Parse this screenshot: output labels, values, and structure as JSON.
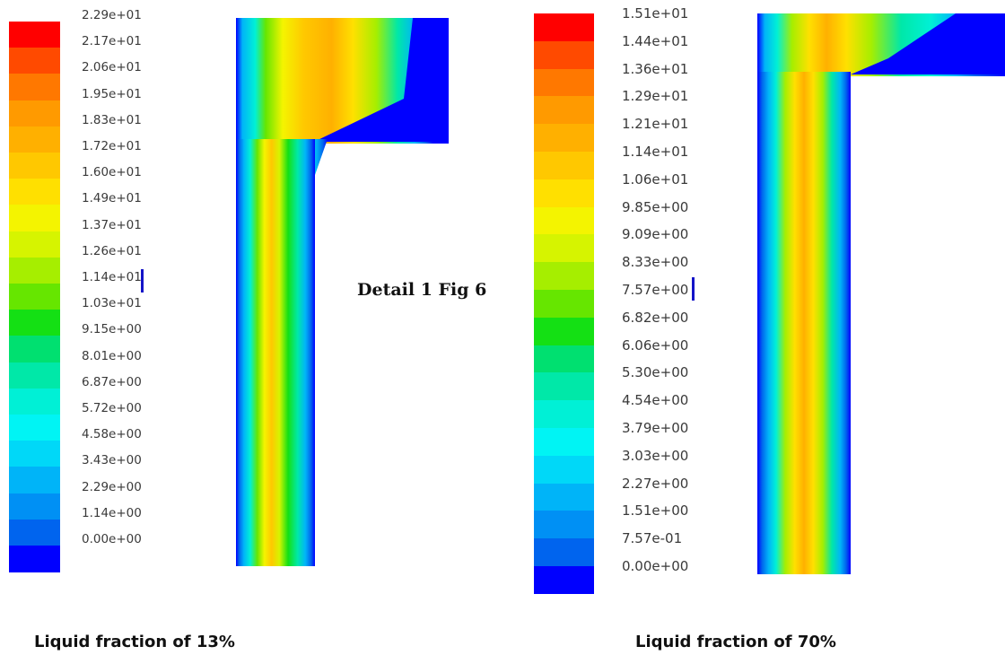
{
  "detail_label": "Detail 1 Fig 6",
  "panels": [
    {
      "caption": "Liquid fraction of  13%",
      "colorbar": {
        "ticks": [
          "2.29e+01",
          "2.17e+01",
          "2.06e+01",
          "1.95e+01",
          "1.83e+01",
          "1.72e+01",
          "1.60e+01",
          "1.49e+01",
          "1.37e+01",
          "1.26e+01",
          "1.14e+01",
          "1.03e+01",
          "9.15e+00",
          "8.01e+00",
          "6.87e+00",
          "5.72e+00",
          "4.58e+00",
          "3.43e+00",
          "2.29e+00",
          "1.14e+00",
          "0.00e+00"
        ],
        "colors": [
          "#ff0000",
          "#ff4a00",
          "#ff7800",
          "#ff9a00",
          "#ffb000",
          "#ffc800",
          "#ffe000",
          "#f4f400",
          "#d6f400",
          "#a6ee00",
          "#66e600",
          "#14e014",
          "#00e070",
          "#00e8a8",
          "#00f0d6",
          "#00f4f4",
          "#00d8f8",
          "#00b4f8",
          "#0090f4",
          "#0064ee",
          "#0000ff"
        ]
      }
    },
    {
      "caption": "Liquid fraction of  70%",
      "colorbar": {
        "ticks": [
          "1.51e+01",
          "1.44e+01",
          "1.36e+01",
          "1.29e+01",
          "1.21e+01",
          "1.14e+01",
          "1.06e+01",
          "9.85e+00",
          "9.09e+00",
          "8.33e+00",
          "7.57e+00",
          "6.82e+00",
          "6.06e+00",
          "5.30e+00",
          "4.54e+00",
          "3.79e+00",
          "3.03e+00",
          "2.27e+00",
          "1.51e+00",
          "7.57e-01",
          "0.00e+00"
        ],
        "colors": [
          "#ff0000",
          "#ff4a00",
          "#ff7800",
          "#ff9a00",
          "#ffb000",
          "#ffc800",
          "#ffe000",
          "#f4f400",
          "#d6f400",
          "#a6ee00",
          "#66e600",
          "#14e014",
          "#00e070",
          "#00e8a8",
          "#00f0d6",
          "#00f4f4",
          "#00d8f8",
          "#00b4f8",
          "#0090f4",
          "#0064ee",
          "#0000ff"
        ]
      }
    }
  ],
  "profile_colors": {
    "wall": "#0000ff",
    "near_wall": "#0a3cff",
    "mid": "#00b4f8",
    "cyan": "#00f0d6",
    "green": "#66e600",
    "yellow": "#f4f400",
    "orange": "#ffb000"
  }
}
